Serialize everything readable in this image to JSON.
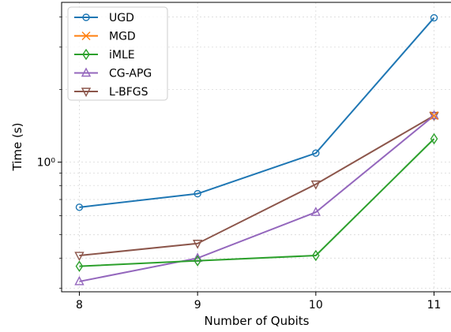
{
  "chart_data": {
    "type": "line",
    "title": "",
    "xlabel": "Number of Qubits",
    "ylabel": "Time (s)",
    "x": [
      8,
      9,
      10,
      11
    ],
    "x_ticks": [
      "8",
      "9",
      "10",
      "11"
    ],
    "xlim": [
      7.85,
      11.15
    ],
    "yscale": "log",
    "ylim": [
      0.29,
      4.6
    ],
    "y_tick_label": "10⁰",
    "y_tick_value": 1.0,
    "grid": "minor dotted",
    "legend_position": "top-left",
    "series": [
      {
        "name": "UGD",
        "color": "#1f77b4",
        "marker": "circle",
        "values": [
          0.65,
          0.74,
          1.09,
          3.97
        ]
      },
      {
        "name": "MGD",
        "color": "#ff7f0e",
        "marker": "x",
        "values": [
          null,
          null,
          null,
          1.56
        ]
      },
      {
        "name": "iMLE",
        "color": "#2ca02c",
        "marker": "diamond",
        "values": [
          0.37,
          0.39,
          0.41,
          1.25
        ]
      },
      {
        "name": "CG-APG",
        "color": "#9467bd",
        "marker": "triangle-up",
        "values": [
          0.32,
          0.4,
          0.62,
          1.56
        ]
      },
      {
        "name": "L-BFGS",
        "color": "#8c564b",
        "marker": "triangle-down",
        "values": [
          0.41,
          0.46,
          0.81,
          1.56
        ]
      }
    ]
  }
}
